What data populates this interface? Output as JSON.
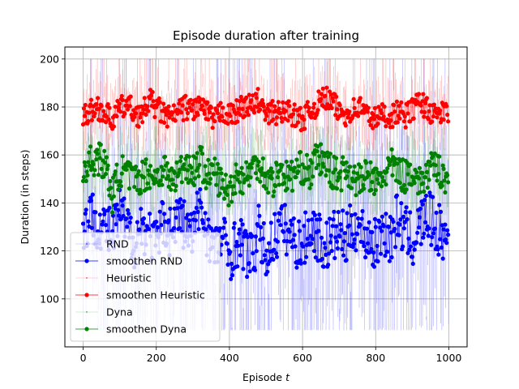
{
  "chart_data": {
    "type": "line",
    "title": "Episode duration after training",
    "xlabel": "Episode t",
    "xlabel_text": "Episode ",
    "xlabel_var": "t",
    "ylabel": "Duration (in steps)",
    "xlim": [
      -50,
      1050
    ],
    "ylim": [
      80,
      205
    ],
    "xticks": [
      0,
      200,
      400,
      600,
      800,
      1000
    ],
    "yticks": [
      100,
      120,
      140,
      160,
      180,
      200
    ],
    "grid": true,
    "legend_position": "lower-left",
    "episodes": 1000,
    "legend": [
      {
        "label": "RND",
        "color": "#0000ff",
        "style": "raw"
      },
      {
        "label": "smoothen RND",
        "color": "#0000ff",
        "style": "smooth"
      },
      {
        "label": "Heuristic",
        "color": "#ff0000",
        "style": "raw"
      },
      {
        "label": "smoothen Heuristic",
        "color": "#ff0000",
        "style": "smooth"
      },
      {
        "label": "Dyna",
        "color": "#008000",
        "style": "raw"
      },
      {
        "label": "smoothen Dyna",
        "color": "#008000",
        "style": "smooth"
      }
    ],
    "series": [
      {
        "name": "RND",
        "kind": "raw",
        "color": "#0000ff",
        "raw_min": 87,
        "raw_max": 200,
        "x": [
          0,
          20,
          40,
          60,
          80,
          100,
          120,
          140,
          160,
          180,
          200,
          220,
          240,
          260,
          280,
          300,
          320,
          340,
          360,
          380,
          400,
          420,
          440,
          460,
          480,
          500,
          520,
          540,
          560,
          580,
          600,
          620,
          640,
          660,
          680,
          700,
          720,
          740,
          760,
          780,
          800,
          820,
          840,
          860,
          880,
          900,
          920,
          940,
          960,
          980,
          995
        ],
        "y": [
          128,
          135,
          132,
          130,
          126,
          136,
          129,
          124,
          131,
          127,
          122,
          133,
          128,
          135,
          130,
          126,
          140,
          128,
          120,
          126,
          118,
          124,
          122,
          116,
          128,
          118,
          125,
          130,
          128,
          124,
          122,
          130,
          127,
          121,
          125,
          128,
          124,
          132,
          128,
          126,
          122,
          130,
          125,
          134,
          128,
          124,
          130,
          135,
          131,
          127,
          125
        ]
      },
      {
        "name": "smoothen RND",
        "kind": "smooth",
        "color": "#0000ff",
        "x": [
          0,
          20,
          40,
          60,
          80,
          100,
          120,
          140,
          160,
          180,
          200,
          220,
          240,
          260,
          280,
          300,
          320,
          340,
          360,
          380,
          400,
          420,
          440,
          460,
          480,
          500,
          520,
          540,
          560,
          580,
          600,
          620,
          640,
          660,
          680,
          700,
          720,
          740,
          760,
          780,
          800,
          820,
          840,
          860,
          880,
          900,
          920,
          940,
          960,
          980,
          995
        ],
        "y": [
          128,
          135,
          132,
          130,
          126,
          136,
          129,
          124,
          131,
          127,
          122,
          133,
          128,
          135,
          130,
          126,
          140,
          128,
          120,
          126,
          118,
          124,
          122,
          116,
          128,
          118,
          125,
          130,
          128,
          124,
          122,
          130,
          127,
          121,
          125,
          128,
          124,
          132,
          128,
          126,
          122,
          130,
          125,
          134,
          128,
          124,
          130,
          135,
          131,
          127,
          125
        ]
      },
      {
        "name": "Heuristic",
        "kind": "raw",
        "color": "#ff0000",
        "raw_min": 162,
        "raw_max": 200,
        "x": [
          0,
          20,
          40,
          60,
          80,
          100,
          120,
          140,
          160,
          180,
          200,
          220,
          240,
          260,
          280,
          300,
          320,
          340,
          360,
          380,
          400,
          420,
          440,
          460,
          480,
          500,
          520,
          540,
          560,
          580,
          600,
          620,
          640,
          660,
          680,
          700,
          720,
          740,
          760,
          780,
          800,
          820,
          840,
          860,
          880,
          900,
          920,
          940,
          960,
          980,
          995
        ],
        "y": [
          176,
          178,
          180,
          177,
          175,
          179,
          181,
          178,
          176,
          183,
          180,
          177,
          175,
          178,
          180,
          179,
          181,
          177,
          174,
          179,
          176,
          178,
          181,
          180,
          183,
          176,
          178,
          177,
          179,
          176,
          175,
          178,
          181,
          184,
          182,
          178,
          177,
          179,
          180,
          176,
          175,
          177,
          176,
          178,
          176,
          179,
          182,
          180,
          176,
          178,
          177
        ]
      },
      {
        "name": "smoothen Heuristic",
        "kind": "smooth",
        "color": "#ff0000",
        "x": [
          0,
          20,
          40,
          60,
          80,
          100,
          120,
          140,
          160,
          180,
          200,
          220,
          240,
          260,
          280,
          300,
          320,
          340,
          360,
          380,
          400,
          420,
          440,
          460,
          480,
          500,
          520,
          540,
          560,
          580,
          600,
          620,
          640,
          660,
          680,
          700,
          720,
          740,
          760,
          780,
          800,
          820,
          840,
          860,
          880,
          900,
          920,
          940,
          960,
          980,
          995
        ],
        "y": [
          176,
          178,
          180,
          177,
          175,
          179,
          181,
          178,
          176,
          183,
          180,
          177,
          175,
          178,
          180,
          179,
          181,
          177,
          174,
          179,
          176,
          178,
          181,
          180,
          183,
          176,
          178,
          177,
          179,
          176,
          175,
          178,
          181,
          184,
          182,
          178,
          177,
          179,
          180,
          176,
          175,
          177,
          176,
          178,
          176,
          179,
          182,
          180,
          176,
          178,
          177
        ]
      },
      {
        "name": "Dyna",
        "kind": "raw",
        "color": "#008000",
        "raw_min": 135,
        "raw_max": 172,
        "x": [
          0,
          20,
          40,
          60,
          80,
          100,
          120,
          140,
          160,
          180,
          200,
          220,
          240,
          260,
          280,
          300,
          320,
          340,
          360,
          380,
          400,
          420,
          440,
          460,
          480,
          500,
          520,
          540,
          560,
          580,
          600,
          620,
          640,
          660,
          680,
          700,
          720,
          740,
          760,
          780,
          800,
          820,
          840,
          860,
          880,
          900,
          920,
          940,
          960,
          980,
          995
        ],
        "y": [
          154,
          157,
          159,
          156,
          143,
          154,
          152,
          149,
          151,
          153,
          150,
          155,
          149,
          152,
          157,
          153,
          158,
          151,
          153,
          147,
          145,
          152,
          150,
          154,
          157,
          151,
          149,
          154,
          150,
          153,
          155,
          152,
          159,
          157,
          153,
          151,
          155,
          150,
          149,
          152,
          148,
          151,
          156,
          153,
          151,
          154,
          148,
          152,
          155,
          153,
          150
        ]
      },
      {
        "name": "smoothen Dyna",
        "kind": "smooth",
        "color": "#008000",
        "x": [
          0,
          20,
          40,
          60,
          80,
          100,
          120,
          140,
          160,
          180,
          200,
          220,
          240,
          260,
          280,
          300,
          320,
          340,
          360,
          380,
          400,
          420,
          440,
          460,
          480,
          500,
          520,
          540,
          560,
          580,
          600,
          620,
          640,
          660,
          680,
          700,
          720,
          740,
          760,
          780,
          800,
          820,
          840,
          860,
          880,
          900,
          920,
          940,
          960,
          980,
          995
        ],
        "y": [
          154,
          157,
          159,
          156,
          143,
          154,
          152,
          149,
          151,
          153,
          150,
          155,
          149,
          152,
          157,
          153,
          158,
          151,
          153,
          147,
          145,
          152,
          150,
          154,
          157,
          151,
          149,
          154,
          150,
          153,
          155,
          152,
          159,
          157,
          153,
          151,
          155,
          150,
          149,
          152,
          148,
          151,
          156,
          153,
          151,
          154,
          148,
          152,
          155,
          153,
          150
        ]
      }
    ]
  }
}
